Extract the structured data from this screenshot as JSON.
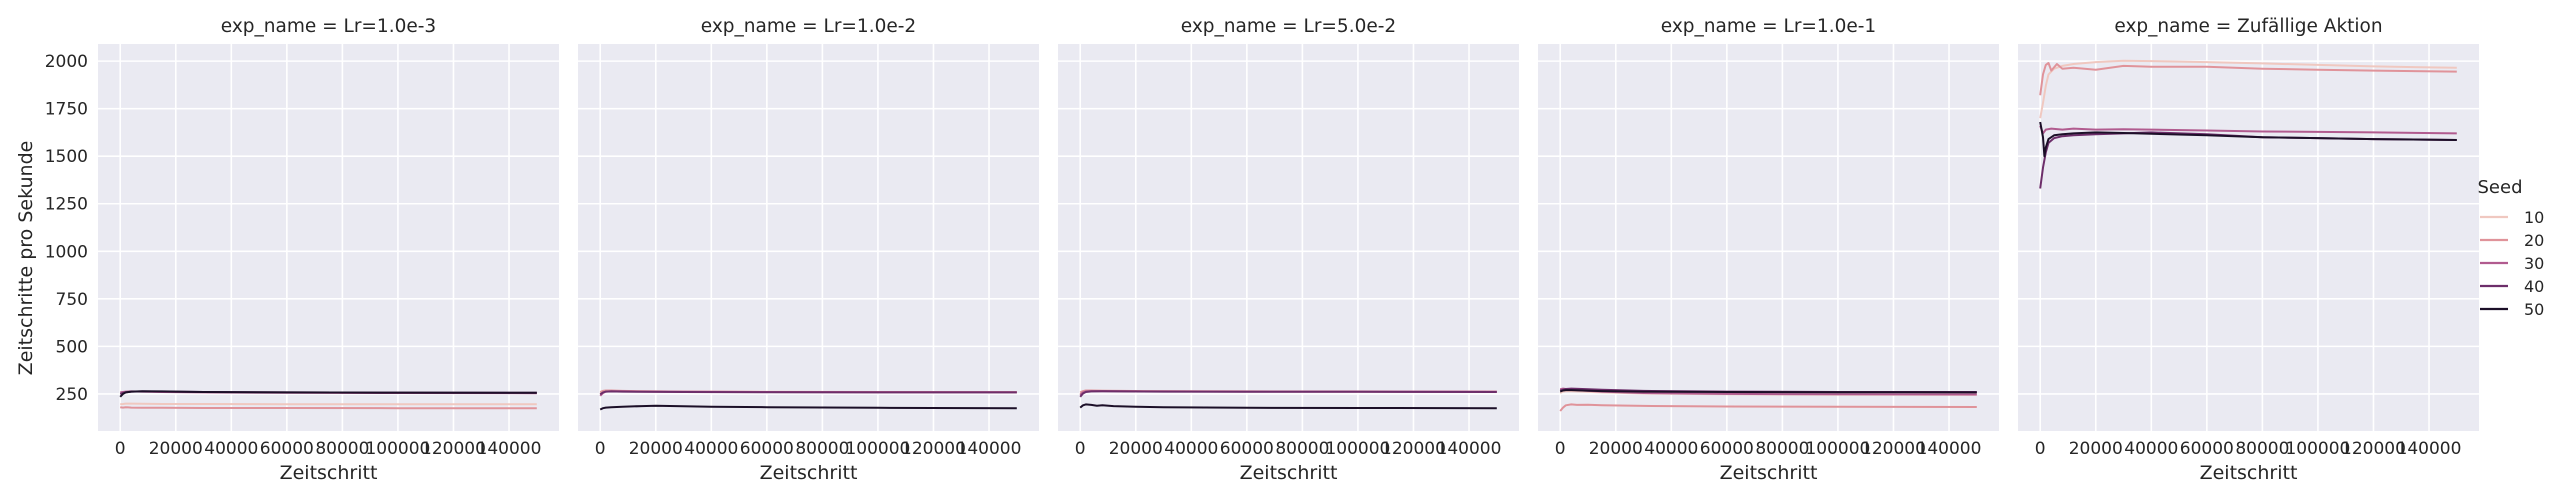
{
  "chart_data": {
    "type": "line",
    "facet_label_prefix": "exp_name = ",
    "xlabel": "Zeitschritt",
    "ylabel": "Zeitschritte pro Sekunde",
    "xlim": [
      -8000,
      158000
    ],
    "ylim": [
      55,
      2090
    ],
    "xticks": [
      0,
      20000,
      40000,
      60000,
      80000,
      100000,
      120000,
      140000
    ],
    "yticks": [
      250,
      500,
      750,
      1000,
      1250,
      1500,
      1750,
      2000
    ],
    "grid": true,
    "legend": {
      "title": "Seed",
      "placement": "right",
      "entries": [
        {
          "label": "10",
          "color": "#f0c8c0"
        },
        {
          "label": "20",
          "color": "#e0939a"
        },
        {
          "label": "30",
          "color": "#b15b8f"
        },
        {
          "label": "40",
          "color": "#6d2e6a"
        },
        {
          "label": "50",
          "color": "#1c0f28"
        }
      ]
    },
    "facets": [
      {
        "title": "Lr=1.0e-3",
        "series": [
          {
            "seed": "10",
            "x": [
              0,
              1000,
              2000,
              4000,
              8000,
              15000,
              30000,
              60000,
              100000,
              150000
            ],
            "y": [
              196,
              197,
              199,
              199,
              198,
              197,
              197,
              196,
              196,
              196
            ]
          },
          {
            "seed": "20",
            "x": [
              0,
              1000,
              2000,
              4000,
              8000,
              15000,
              30000,
              60000,
              100000,
              150000
            ],
            "y": [
              180,
              178,
              180,
              178,
              177,
              177,
              176,
              176,
              175,
              175
            ]
          },
          {
            "seed": "30",
            "x": [
              0,
              1000,
              2000,
              4000,
              8000,
              15000,
              30000,
              60000,
              100000,
              150000
            ],
            "y": [
              258,
              260,
              262,
              263,
              262,
              260,
              258,
              256,
              255,
              254
            ]
          },
          {
            "seed": "40",
            "x": [
              0,
              1000,
              2000,
              4000,
              8000,
              15000,
              30000,
              60000,
              100000,
              150000
            ],
            "y": [
              250,
              255,
              259,
              262,
              263,
              262,
              260,
              258,
              257,
              256
            ]
          },
          {
            "seed": "50",
            "x": [
              0,
              1000,
              2000,
              4000,
              8000,
              15000,
              30000,
              60000,
              100000,
              150000
            ],
            "y": [
              235,
              250,
              258,
              262,
              264,
              263,
              260,
              258,
              257,
              256
            ]
          }
        ]
      },
      {
        "title": "Lr=1.0e-2",
        "series": [
          {
            "seed": "10",
            "x": [
              0,
              1000,
              2000,
              4000,
              8000,
              15000,
              30000,
              60000,
              100000,
              150000
            ],
            "y": [
              255,
              262,
              265,
              266,
              265,
              264,
              262,
              261,
              260,
              260
            ]
          },
          {
            "seed": "20",
            "x": [
              0,
              1000,
              2000,
              4000,
              8000,
              15000,
              30000,
              60000,
              100000,
              150000
            ],
            "y": [
              260,
              266,
              268,
              268,
              266,
              264,
              262,
              260,
              260,
              259
            ]
          },
          {
            "seed": "30",
            "x": [
              0,
              1000,
              2000,
              4000,
              8000,
              15000,
              30000,
              60000,
              100000,
              150000
            ],
            "y": [
              240,
              255,
              262,
              264,
              264,
              262,
              261,
              260,
              259,
              259
            ]
          },
          {
            "seed": "40",
            "x": [
              0,
              1000,
              2000,
              4000,
              8000,
              15000,
              30000,
              60000,
              100000,
              150000
            ],
            "y": [
              248,
              258,
              262,
              263,
              262,
              261,
              260,
              259,
              258,
              258
            ]
          },
          {
            "seed": "50",
            "x": [
              0,
              1000,
              2000,
              4000,
              8000,
              15000,
              20000,
              30000,
              40000,
              60000,
              100000,
              150000
            ],
            "y": [
              168,
              175,
              178,
              180,
              183,
              186,
              188,
              185,
              183,
              180,
              177,
              175
            ]
          }
        ]
      },
      {
        "title": "Lr=5.0e-2",
        "series": [
          {
            "seed": "10",
            "x": [
              0,
              1000,
              2000,
              4000,
              8000,
              15000,
              30000,
              60000,
              100000,
              150000
            ],
            "y": [
              250,
              262,
              266,
              267,
              266,
              265,
              264,
              263,
              263,
              262
            ]
          },
          {
            "seed": "20",
            "x": [
              0,
              1000,
              2000,
              4000,
              8000,
              15000,
              30000,
              60000,
              100000,
              150000
            ],
            "y": [
              258,
              265,
              268,
              268,
              267,
              266,
              264,
              263,
              262,
              262
            ]
          },
          {
            "seed": "30",
            "x": [
              0,
              1000,
              2000,
              4000,
              8000,
              15000,
              30000,
              60000,
              100000,
              150000
            ],
            "y": [
              245,
              258,
              263,
              265,
              265,
              264,
              263,
              262,
              262,
              261
            ]
          },
          {
            "seed": "40",
            "x": [
              0,
              1000,
              2000,
              4000,
              8000,
              15000,
              30000,
              60000,
              100000,
              150000
            ],
            "y": [
              235,
              252,
              260,
              263,
              264,
              263,
              262,
              261,
              261,
              260
            ]
          },
          {
            "seed": "50",
            "x": [
              0,
              1000,
              2000,
              4000,
              6000,
              8000,
              12000,
              20000,
              30000,
              60000,
              100000,
              150000
            ],
            "y": [
              178,
              190,
              195,
              192,
              188,
              190,
              186,
              183,
              180,
              177,
              176,
              175
            ]
          }
        ]
      },
      {
        "title": "Lr=1.0e-1",
        "series": [
          {
            "seed": "10",
            "x": [
              0,
              1000,
              2000,
              4000,
              8000,
              15000,
              30000,
              60000,
              100000,
              150000
            ],
            "y": [
              255,
              262,
              264,
              264,
              262,
              258,
              252,
              248,
              246,
              245
            ]
          },
          {
            "seed": "20",
            "x": [
              0,
              1000,
              2000,
              4000,
              6000,
              10000,
              15000,
              30000,
              60000,
              100000,
              150000
            ],
            "y": [
              160,
              178,
              190,
              195,
              192,
              193,
              190,
              187,
              184,
              182,
              181
            ]
          },
          {
            "seed": "30",
            "x": [
              0,
              1000,
              2000,
              4000,
              8000,
              15000,
              30000,
              60000,
              100000,
              150000
            ],
            "y": [
              275,
              278,
              276,
              272,
              268,
              262,
              255,
              250,
              248,
              247
            ]
          },
          {
            "seed": "40",
            "x": [
              0,
              1000,
              2000,
              4000,
              8000,
              15000,
              30000,
              60000,
              100000,
              150000
            ],
            "y": [
              268,
              272,
              276,
              278,
              276,
              272,
              266,
              262,
              260,
              260
            ]
          },
          {
            "seed": "50",
            "x": [
              0,
              1000,
              2000,
              4000,
              8000,
              15000,
              30000,
              60000,
              100000,
              150000
            ],
            "y": [
              262,
              268,
              270,
              270,
              268,
              265,
              262,
              260,
              259,
              258
            ]
          }
        ]
      },
      {
        "title": "Zufällige Aktion",
        "series": [
          {
            "seed": "10",
            "x": [
              0,
              1000,
              2000,
              3000,
              5000,
              8000,
              12000,
              20000,
              30000,
              40000,
              60000,
              80000,
              100000,
              120000,
              150000
            ],
            "y": [
              1700,
              1780,
              1870,
              1930,
              1960,
              1975,
              1985,
              1995,
              2002,
              2000,
              1995,
              1988,
              1980,
              1972,
              1965
            ]
          },
          {
            "seed": "20",
            "x": [
              0,
              1000,
              2000,
              3000,
              4000,
              6000,
              8000,
              12000,
              20000,
              30000,
              40000,
              60000,
              80000,
              100000,
              120000,
              150000
            ],
            "y": [
              1820,
              1930,
              1980,
              1990,
              1950,
              1985,
              1960,
              1965,
              1955,
              1975,
              1970,
              1970,
              1960,
              1955,
              1950,
              1945
            ]
          },
          {
            "seed": "30",
            "x": [
              0,
              1000,
              2000,
              4000,
              8000,
              12000,
              20000,
              30000,
              40000,
              60000,
              80000,
              100000,
              120000,
              150000
            ],
            "y": [
              1660,
              1620,
              1640,
              1645,
              1640,
              1645,
              1640,
              1642,
              1640,
              1635,
              1630,
              1628,
              1625,
              1620
            ]
          },
          {
            "seed": "40",
            "x": [
              0,
              1000,
              2000,
              3000,
              5000,
              8000,
              12000,
              20000,
              30000,
              40000,
              60000,
              80000,
              100000,
              120000,
              150000
            ],
            "y": [
              1330,
              1440,
              1520,
              1570,
              1595,
              1605,
              1610,
              1615,
              1620,
              1625,
              1615,
              1600,
              1595,
              1590,
              1585
            ]
          },
          {
            "seed": "50",
            "x": [
              0,
              1000,
              1500,
              2000,
              3000,
              5000,
              8000,
              12000,
              20000,
              30000,
              40000,
              60000,
              80000,
              100000,
              120000,
              150000
            ],
            "y": [
              1680,
              1600,
              1500,
              1545,
              1590,
              1610,
              1615,
              1620,
              1625,
              1622,
              1618,
              1610,
              1600,
              1595,
              1590,
              1585
            ]
          }
        ]
      }
    ]
  }
}
